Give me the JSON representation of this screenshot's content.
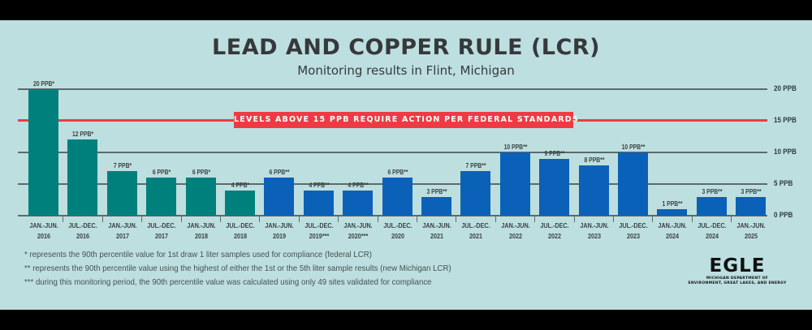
{
  "header": {
    "title": "LEAD AND COPPER RULE (LCR)",
    "subtitle": "Monitoring results in Flint, Michigan"
  },
  "action_banner": "LEVELS ABOVE 15 PPB REQUIRE ACTION PER FEDERAL STANDARDS",
  "y_axis": {
    "ticks": [
      "20 PPB",
      "15 PPB",
      "10 PPB",
      "5 PPB",
      "0 PPB"
    ]
  },
  "bars": [
    {
      "period": "JAN.-JUN.",
      "year": "2016",
      "value": 20,
      "label": "20 PPB*",
      "series": "federal"
    },
    {
      "period": "JUL.-DEC.",
      "year": "2016",
      "value": 12,
      "label": "12 PPB*",
      "series": "federal"
    },
    {
      "period": "JAN.-JUN.",
      "year": "2017",
      "value": 7,
      "label": "7 PPB*",
      "series": "federal"
    },
    {
      "period": "JUL.-DEC.",
      "year": "2017",
      "value": 6,
      "label": "6 PPB*",
      "series": "federal"
    },
    {
      "period": "JAN.-JUN.",
      "year": "2018",
      "value": 6,
      "label": "6 PPB*",
      "series": "federal"
    },
    {
      "period": "JUL.-DEC.",
      "year": "2018",
      "value": 4,
      "label": "4 PPB*",
      "series": "federal"
    },
    {
      "period": "JAN.-JUN.",
      "year": "2019",
      "value": 6,
      "label": "6 PPB**",
      "series": "michigan"
    },
    {
      "period": "JUL.-DEC.",
      "year": "2019***",
      "value": 4,
      "label": "4 PPB**",
      "series": "michigan"
    },
    {
      "period": "JAN.-JUN.",
      "year": "2020***",
      "value": 4,
      "label": "4 PPB**",
      "series": "michigan"
    },
    {
      "period": "JUL.-DEC.",
      "year": "2020",
      "value": 6,
      "label": "6 PPB**",
      "series": "michigan"
    },
    {
      "period": "JAN.-JUN.",
      "year": "2021",
      "value": 3,
      "label": "3 PPB**",
      "series": "michigan"
    },
    {
      "period": "JUL.-DEC.",
      "year": "2021",
      "value": 7,
      "label": "7 PPB**",
      "series": "michigan"
    },
    {
      "period": "JAN.-JUN.",
      "year": "2022",
      "value": 10,
      "label": "10 PPB**",
      "series": "michigan"
    },
    {
      "period": "JUL.-DEC.",
      "year": "2022",
      "value": 9,
      "label": "9 PPB**",
      "series": "michigan"
    },
    {
      "period": "JAN.-JUN.",
      "year": "2023",
      "value": 8,
      "label": "8 PPB**",
      "series": "michigan"
    },
    {
      "period": "JUL.-DEC.",
      "year": "2023",
      "value": 10,
      "label": "10 PPB**",
      "series": "michigan"
    },
    {
      "period": "JAN.-JUN.",
      "year": "2024",
      "value": 1,
      "label": "1 PPB**",
      "series": "michigan"
    },
    {
      "period": "JUL.-DEC.",
      "year": "2024",
      "value": 3,
      "label": "3 PPB**",
      "series": "michigan"
    },
    {
      "period": "JAN.-JUN.",
      "year": "2025",
      "value": 3,
      "label": "3 PPB**",
      "series": "michigan"
    }
  ],
  "footnotes": [
    "* represents the 90th percentile value for 1st draw 1 liter samples used for compliance (federal LCR)",
    "** represents the 90th percentile value using the highest of either the 1st or the 5th liter sample results (new Michigan LCR)",
    "*** during this monitoring period, the 90th percentile value was calculated using only 49 sites validated for compliance"
  ],
  "logo": {
    "word": "EGLE",
    "line1": "MICHIGAN DEPARTMENT OF",
    "line2": "ENVIRONMENT, GREAT LAKES, AND ENERGY"
  },
  "colors": {
    "background": "#bddfe0",
    "federal_bar": "#00807c",
    "michigan_bar": "#0b61b8",
    "action_line": "#ee3b43",
    "gridline": "#5b6b6b",
    "text": "#36393b"
  },
  "chart_data": {
    "type": "bar",
    "title": "LEAD AND COPPER RULE (LCR)",
    "subtitle": "Monitoring results in Flint, Michigan",
    "xlabel": "",
    "ylabel": "PPB",
    "ylim": [
      0,
      20
    ],
    "yticks": [
      0,
      5,
      10,
      15,
      20
    ],
    "grid": true,
    "categories": [
      "JAN.-JUN. 2016",
      "JUL.-DEC. 2016",
      "JAN.-JUN. 2017",
      "JUL.-DEC. 2017",
      "JAN.-JUN. 2018",
      "JUL.-DEC. 2018",
      "JAN.-JUN. 2019",
      "JUL.-DEC. 2019***",
      "JAN.-JUN. 2020***",
      "JUL.-DEC. 2020",
      "JAN.-JUN. 2021",
      "JUL.-DEC. 2021",
      "JAN.-JUN. 2022",
      "JUL.-DEC. 2022",
      "JAN.-JUN. 2023",
      "JUL.-DEC. 2023",
      "JAN.-JUN. 2024",
      "JUL.-DEC. 2024",
      "JAN.-JUN. 2025"
    ],
    "series": [
      {
        "name": "Federal LCR (*)",
        "color": "#00807c",
        "values": [
          20,
          12,
          7,
          6,
          6,
          4,
          null,
          null,
          null,
          null,
          null,
          null,
          null,
          null,
          null,
          null,
          null,
          null,
          null
        ]
      },
      {
        "name": "New Michigan LCR (**)",
        "color": "#0b61b8",
        "values": [
          null,
          null,
          null,
          null,
          null,
          null,
          6,
          4,
          4,
          6,
          3,
          7,
          10,
          9,
          8,
          10,
          1,
          3,
          3
        ]
      }
    ],
    "annotations": [
      {
        "type": "hline",
        "y": 15,
        "color": "#ee3b43",
        "text": "LEVELS ABOVE 15 PPB REQUIRE ACTION PER FEDERAL STANDARDS"
      }
    ],
    "legend": "none (footnotes explain * / ** / ***)"
  }
}
